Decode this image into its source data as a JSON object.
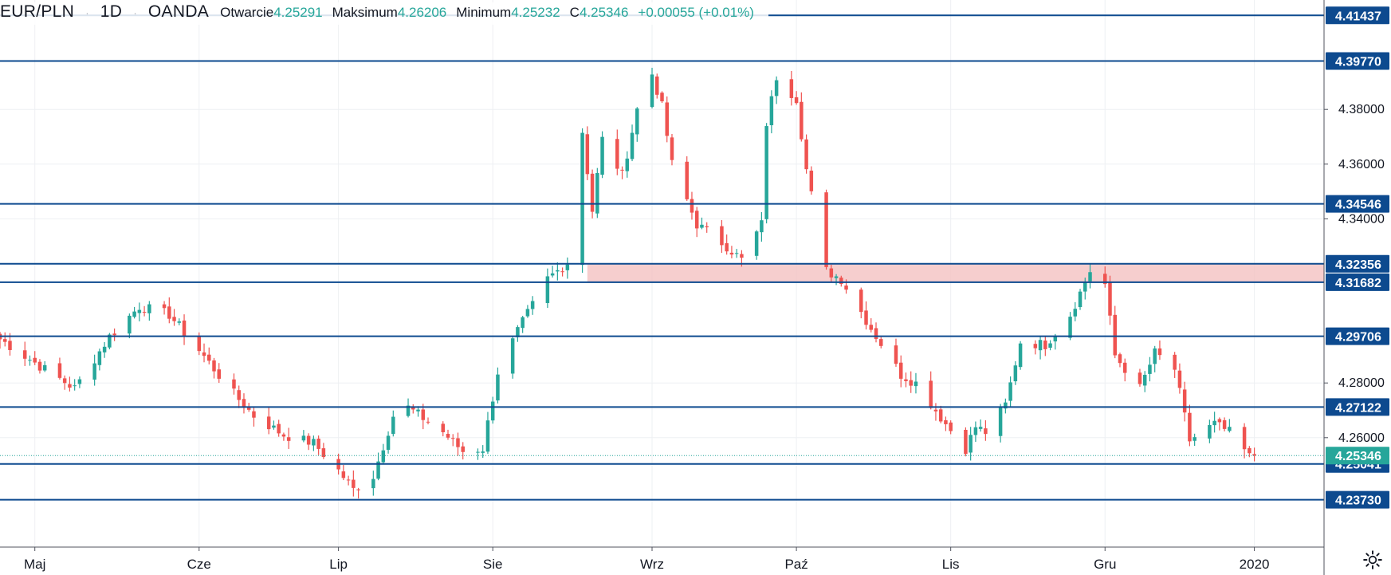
{
  "header": {
    "symbol": "EUR/PLN",
    "interval": "1D",
    "source": "OANDA",
    "open_label": "Otwarcie",
    "open_value": "4.25291",
    "high_label": "Maksimum",
    "high_value": "4.26206",
    "low_label": "Minimum",
    "low_value": "4.25232",
    "close_label": "C",
    "close_value": "4.25346",
    "change": "+0.00055 (+0.01%)"
  },
  "colors": {
    "up": "#26a69a",
    "down": "#ef5350",
    "level_line": "#0d4a8f",
    "level_badge": "#0d4a8f",
    "price_badge": "#26a69a",
    "zone": "#f4c2c2",
    "grid": "#eef0f3"
  },
  "chart_data": {
    "type": "candlestick",
    "instrument": "EUR/PLN",
    "timeframe": "1D",
    "y_axis": {
      "ylim": [
        4.22,
        4.42
      ],
      "ticks": [
        "4.26000",
        "4.28000",
        "4.34000",
        "4.36000",
        "4.38000"
      ]
    },
    "x_axis": {
      "start_date": "2019-04-24",
      "end_date": "2020-01-15",
      "ticks": [
        {
          "date": "2019-05-01",
          "label": "Maj"
        },
        {
          "date": "2019-06-03",
          "label": "Cze"
        },
        {
          "date": "2019-07-01",
          "label": "Lip"
        },
        {
          "date": "2019-08-01",
          "label": "Sie"
        },
        {
          "date": "2019-09-02",
          "label": "Wrz"
        },
        {
          "date": "2019-10-01",
          "label": "Paź"
        },
        {
          "date": "2019-11-01",
          "label": "Lis"
        },
        {
          "date": "2019-12-02",
          "label": "Gru"
        },
        {
          "date": "2020-01-01",
          "label": "2020"
        }
      ]
    },
    "horizontal_levels": [
      "4.41437",
      "4.39770",
      "4.34546",
      "4.32356",
      "4.31682",
      "4.29706",
      "4.27122",
      "4.25041",
      "4.23730"
    ],
    "zone": {
      "from": 4.31682,
      "to": 4.32356,
      "start_date": "2019-08-20"
    },
    "current_price": "4.25346",
    "anchors": [
      [
        "2019-04-24",
        4.296
      ],
      [
        "2019-05-03",
        4.285
      ],
      [
        "2019-05-09",
        4.278
      ],
      [
        "2019-05-16",
        4.297
      ],
      [
        "2019-05-22",
        4.308
      ],
      [
        "2019-05-28",
        4.305
      ],
      [
        "2019-06-03",
        4.292
      ],
      [
        "2019-06-10",
        4.276
      ],
      [
        "2019-06-14",
        4.268
      ],
      [
        "2019-06-20",
        4.261
      ],
      [
        "2019-06-26",
        4.258
      ],
      [
        "2019-07-01",
        4.248
      ],
      [
        "2019-07-04",
        4.241
      ],
      [
        "2019-07-08",
        4.246
      ],
      [
        "2019-07-12",
        4.268
      ],
      [
        "2019-07-15",
        4.271
      ],
      [
        "2019-07-22",
        4.262
      ],
      [
        "2019-07-26",
        4.255
      ],
      [
        "2019-07-30",
        4.256
      ],
      [
        "2019-08-02",
        4.284
      ],
      [
        "2019-08-06",
        4.299
      ],
      [
        "2019-08-12",
        4.318
      ],
      [
        "2019-08-16",
        4.324
      ],
      [
        "2019-08-19",
        4.372
      ],
      [
        "2019-08-21",
        4.343
      ],
      [
        "2019-08-23",
        4.369
      ],
      [
        "2019-08-27",
        4.356
      ],
      [
        "2019-08-30",
        4.38
      ],
      [
        "2019-09-02",
        4.393
      ],
      [
        "2019-09-04",
        4.381
      ],
      [
        "2019-09-06",
        4.36
      ],
      [
        "2019-09-11",
        4.338
      ],
      [
        "2019-09-17",
        4.33
      ],
      [
        "2019-09-20",
        4.325
      ],
      [
        "2019-09-24",
        4.338
      ],
      [
        "2019-09-25",
        4.375
      ],
      [
        "2019-09-27",
        4.392
      ],
      [
        "2019-10-01",
        4.384
      ],
      [
        "2019-10-03",
        4.358
      ],
      [
        "2019-10-07",
        4.321
      ],
      [
        "2019-10-10",
        4.318
      ],
      [
        "2019-10-16",
        4.3
      ],
      [
        "2019-10-22",
        4.283
      ],
      [
        "2019-10-25",
        4.28
      ],
      [
        "2019-10-31",
        4.265
      ],
      [
        "2019-11-04",
        4.256
      ],
      [
        "2019-11-06",
        4.264
      ],
      [
        "2019-11-08",
        4.262
      ],
      [
        "2019-11-12",
        4.272
      ],
      [
        "2019-11-15",
        4.295
      ],
      [
        "2019-11-20",
        4.294
      ],
      [
        "2019-11-25",
        4.305
      ],
      [
        "2019-11-29",
        4.321
      ],
      [
        "2019-12-02",
        4.316
      ],
      [
        "2019-12-04",
        4.29
      ],
      [
        "2019-12-09",
        4.278
      ],
      [
        "2019-12-12",
        4.291
      ],
      [
        "2019-12-16",
        4.285
      ],
      [
        "2019-12-19",
        4.259
      ],
      [
        "2019-12-24",
        4.265
      ],
      [
        "2019-12-27",
        4.262
      ],
      [
        "2019-12-31",
        4.253
      ],
      [
        "2020-01-01",
        4.2535
      ]
    ]
  }
}
